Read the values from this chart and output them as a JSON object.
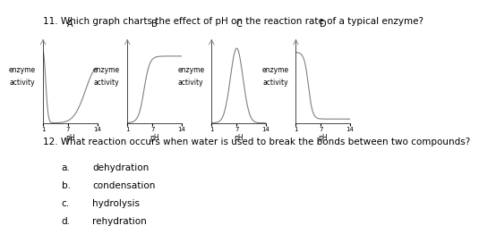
{
  "title_q11": "11. Which graph charts the effect of pH on the reaction rate of a typical enzyme?",
  "title_q12": "12. What reaction occurs when water is used to break the bonds between two compounds?",
  "q12_options": [
    [
      "a.",
      "dehydration"
    ],
    [
      "b.",
      "condensation"
    ],
    [
      "c.",
      "hydrolysis"
    ],
    [
      "d.",
      "rehydration"
    ]
  ],
  "graph_labels": [
    "A",
    "B",
    "C",
    "D"
  ],
  "axis_ylabel": [
    "enzyme",
    "activity"
  ],
  "axis_xlabel": "pH",
  "x_ticks": [
    1,
    7,
    14
  ],
  "bg_color": "#ffffff",
  "line_color": "#808080",
  "text_color": "#000000",
  "font_size_title": 7.5,
  "font_size_label": 5.5,
  "font_size_tick": 5.0,
  "font_size_graph_label": 7.0
}
